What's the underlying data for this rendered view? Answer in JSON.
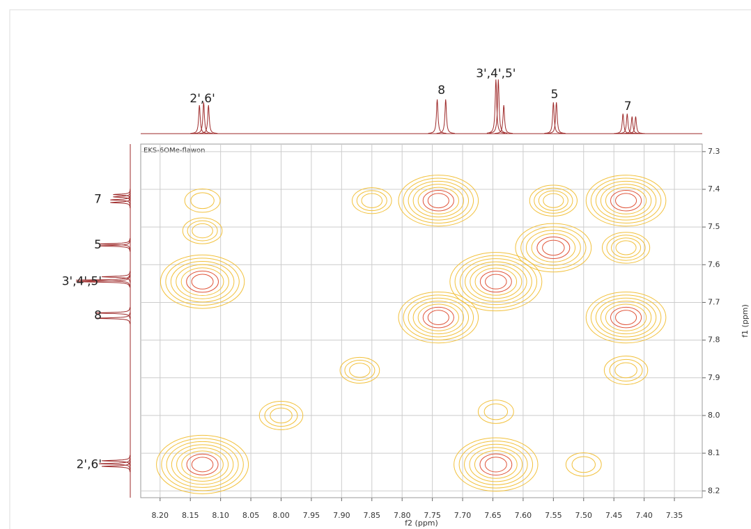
{
  "chart_data": {
    "type": "contour",
    "title": "EKS-6OMe-flawon",
    "x_label": "f2 (ppm)",
    "y_label": "f1 (ppm)",
    "xlim": [
      8.232,
      7.304
    ],
    "ylim": [
      7.28,
      8.218
    ],
    "xticks": [
      {
        "value": 8.2,
        "label": "8.20"
      },
      8.15,
      {
        "value": 8.1,
        "label": "8.10"
      },
      8.05,
      {
        "value": 8.0,
        "label": "8.00"
      },
      7.95,
      {
        "value": 7.9,
        "label": "7.90"
      },
      7.85,
      {
        "value": 7.8,
        "label": "7.80"
      },
      7.75,
      {
        "value": 7.7,
        "label": "7.70"
      },
      7.65,
      {
        "value": 7.6,
        "label": "7.60"
      },
      7.55,
      {
        "value": 7.5,
        "label": "7.50"
      },
      7.45,
      {
        "value": 7.4,
        "label": "7.40"
      },
      7.35
    ],
    "yticks": [
      7.3,
      7.4,
      7.5,
      7.6,
      7.7,
      7.8,
      7.9,
      {
        "value": 8.0,
        "label": "8.0"
      },
      8.1,
      8.2
    ],
    "grid": true,
    "peaks": {
      "x": [
        8.13,
        8.13,
        7.74,
        7.74,
        7.645,
        7.645,
        7.55,
        7.43,
        7.43,
        8.13,
        8.13,
        8.0,
        7.87,
        7.55,
        7.43,
        7.43,
        7.85,
        7.645,
        7.5
      ],
      "y": [
        7.645,
        8.13,
        7.43,
        7.74,
        7.645,
        8.13,
        7.555,
        7.43,
        7.74,
        7.43,
        7.51,
        8.0,
        7.88,
        7.43,
        7.555,
        7.88,
        7.43,
        7.99,
        8.13
      ],
      "z": [
        0.9,
        1.0,
        0.85,
        0.85,
        1.0,
        0.9,
        0.8,
        0.85,
        0.85,
        0.3,
        0.35,
        0.4,
        0.35,
        0.45,
        0.45,
        0.4,
        0.35,
        0.3,
        0.3
      ]
    },
    "projection": {
      "ppm": [
        8.135,
        8.128,
        8.12,
        7.742,
        7.728,
        7.645,
        7.641,
        7.632,
        7.55,
        7.545,
        7.435,
        7.428,
        7.42,
        7.414
      ],
      "heights": [
        0.5,
        0.55,
        0.5,
        0.6,
        0.6,
        0.95,
        0.95,
        0.5,
        0.55,
        0.55,
        0.35,
        0.35,
        0.3,
        0.3
      ]
    },
    "peak_labels": {
      "labels": [
        "2',6'",
        "8",
        "3',4',5'",
        "5",
        "7"
      ],
      "ppm": [
        8.13,
        7.735,
        7.645,
        7.548,
        7.427
      ]
    }
  }
}
